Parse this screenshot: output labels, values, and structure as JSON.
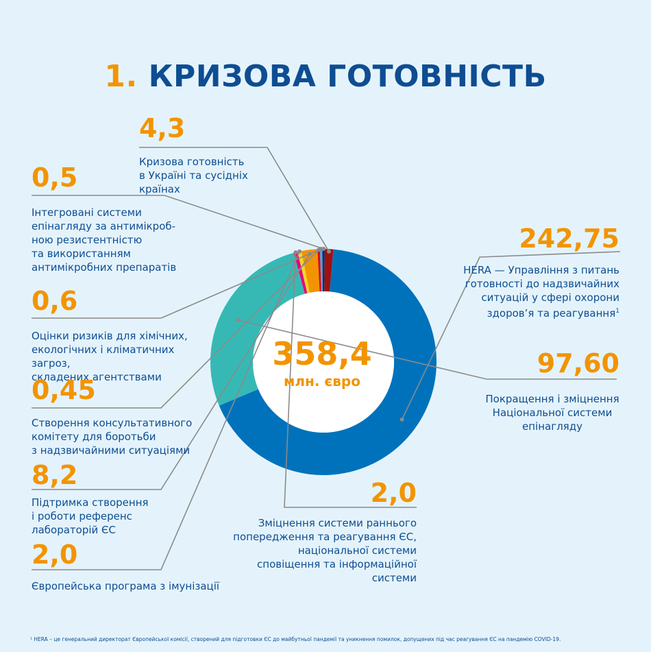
{
  "title": {
    "number": "1.",
    "text": "КРИЗОВА ГОТОВНІСТЬ"
  },
  "chart_data": {
    "type": "pie",
    "style": "donut",
    "total": "358,4",
    "unit": "млн. євро",
    "slices": [
      {
        "id": "hera",
        "value": 242.75,
        "value_label": "242,75",
        "label": "HERA — Управління з питань\nготовності до надзвичайних\nситуацій у сфері охорони\nздоров’я та реагування",
        "footnote_mark": "1",
        "color": "#0072bc"
      },
      {
        "id": "surveillance",
        "value": 97.6,
        "value_label": "97,60",
        "label": "Покращення і зміцнення\nНаціональної  системи\nепінагляду",
        "color": "#36b9b5"
      },
      {
        "id": "early-warning",
        "value": 2.0,
        "value_label": "2,0",
        "label": "Зміцнення системи раннього\nпопередження та реагування ЄС,\nнаціональної системи\nсповіщення та інформаційної системи",
        "color": "#e5007e"
      },
      {
        "id": "immunization",
        "value": 2.0,
        "value_label": "2,0",
        "label": "Європейська програма з імунізації",
        "color": "#f5d327"
      },
      {
        "id": "reference-labs",
        "value": 8.2,
        "value_label": "8,2",
        "label": "Підтримка створення\nі роботи референс\nлабораторій ЄС",
        "color": "#f29400"
      },
      {
        "id": "advisory",
        "value": 0.45,
        "value_label": "0,45",
        "label": "Створення консультативного\nкомітету для боротьби\nз надзвичайними ситуаціями",
        "color": "#e30613"
      },
      {
        "id": "risk",
        "value": 0.6,
        "value_label": "0,6",
        "label": "Оцінки ризиків для хімічних,\nекологічних і кліматичних загроз,\nскладених агентствами",
        "color": "#5b9ad5"
      },
      {
        "id": "amr",
        "value": 0.5,
        "value_label": "0,5",
        "label": "Інтегровані системи\nепінагляду за антимікроб-\nною резистентністю\nта використанням\nантимікробних препаратів",
        "color": "#0b2f6b"
      },
      {
        "id": "ukraine",
        "value": 4.3,
        "value_label": "4,3",
        "label": "Кризова готовність\nв Україні та сусідніх\nкраїнах",
        "color": "#a0100f"
      }
    ]
  },
  "footnote": "¹ HERA – це генеральний директорат Європейської комісії, створений для підготовки ЄС до майбутньої пандемії та уникнення помилок, допущених під час реагування ЄС на пандемію COVID-19."
}
